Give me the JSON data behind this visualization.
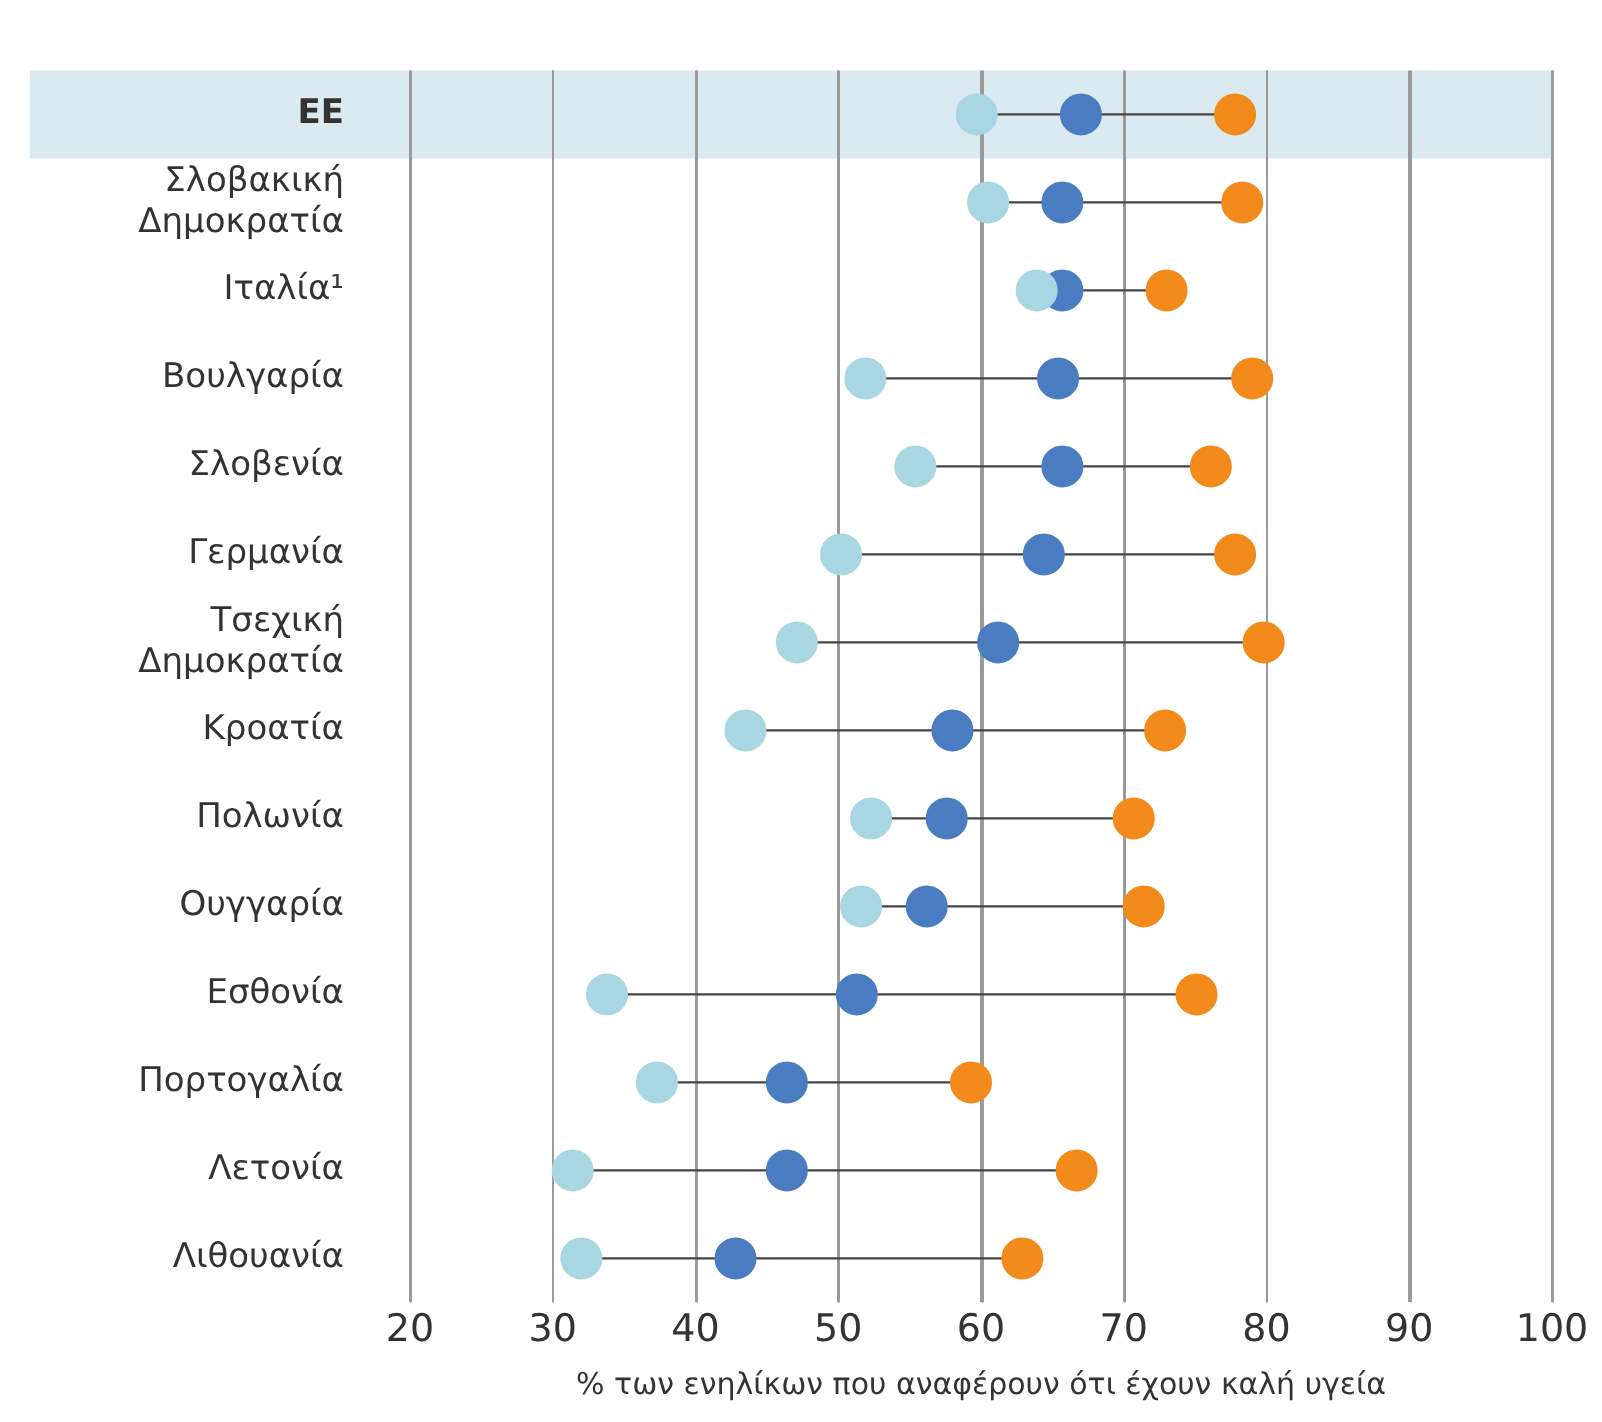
{
  "chart_data": {
    "type": "scatter",
    "orientation": "horizontal",
    "xlabel": "% των ενηλίκων που αναφέρουν ότι έχουν καλή υγεία",
    "categories": [
      "ΕΕ",
      "Σλοβακική Δημοκρατία",
      "Ιταλία¹",
      "Βουλγαρία",
      "Σλοβενία",
      "Γερμανία",
      "Τσεχική Δημοκρατία",
      "Κροατία",
      "Πολωνία",
      "Ουγγαρία",
      "Εσθονία",
      "Πορτογαλία",
      "Λετονία",
      "Λιθουανία"
    ],
    "series": [
      {
        "color": "#a9d6e3",
        "values": [
          59.7,
          60.5,
          63.9,
          51.9,
          55.4,
          50.2,
          47.1,
          43.5,
          52.3,
          51.6,
          33.8,
          37.3,
          31.4,
          32.0
        ]
      },
      {
        "color": "#4a7cc2",
        "values": [
          67.0,
          65.7,
          65.7,
          65.4,
          65.7,
          64.4,
          61.2,
          58.0,
          57.6,
          56.2,
          51.3,
          46.4,
          46.4,
          42.8
        ]
      },
      {
        "color": "#f28a1c",
        "values": [
          77.8,
          78.3,
          73.0,
          79.0,
          76.1,
          77.8,
          79.8,
          72.9,
          70.7,
          71.4,
          75.1,
          59.3,
          66.7,
          62.9
        ]
      }
    ],
    "xlim": [
      20,
      100
    ],
    "xticks": [
      20,
      30,
      40,
      50,
      60,
      70,
      80,
      90,
      100
    ],
    "grid": "x",
    "marker": "circle",
    "bands": [
      {
        "axis": "y",
        "from": "ΕΕ",
        "to": "ΕΕ",
        "color": "#dbeaf0"
      }
    ]
  }
}
